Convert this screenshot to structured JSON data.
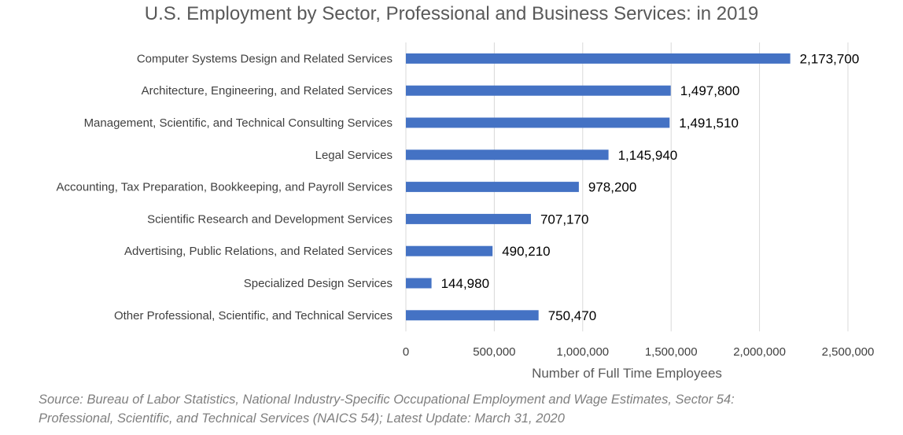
{
  "chart_data": {
    "type": "bar",
    "orientation": "horizontal",
    "title": "U.S. Employment by Sector, Professional and Business Services: in 2019",
    "categories": [
      "Computer Systems Design and Related Services",
      "Architecture, Engineering, and Related Services",
      "Management, Scientific, and Technical Consulting Services",
      "Legal Services",
      "Accounting, Tax Preparation, Bookkeeping, and Payroll Services",
      "Scientific Research and Development Services",
      "Advertising, Public Relations, and Related Services",
      "Specialized Design Services",
      "Other Professional, Scientific, and Technical Services"
    ],
    "values": [
      2173700,
      1497800,
      1491510,
      1145940,
      978200,
      707170,
      490210,
      144980,
      750470
    ],
    "data_labels": [
      "2,173,700",
      "1,497,800",
      "1,491,510",
      "1,145,940",
      "978,200",
      "707,170",
      "490,210",
      "144,980",
      "750,470"
    ],
    "xlabel": "Number of Full Time Employees",
    "ylabel": "",
    "xlim": [
      0,
      2500000
    ],
    "xticks": [
      0,
      500000,
      1000000,
      1500000,
      2000000,
      2500000
    ],
    "xtick_labels": [
      "0",
      "500,000",
      "1,000,000",
      "1,500,000",
      "2,000,000",
      "2,500,000"
    ],
    "grid": "vertical",
    "legend": "none",
    "bar_color": "#4472C4",
    "grid_color": "#D9D9D9"
  },
  "source_note": "Source: Bureau of Labor Statistics, National Industry-Specific Occupational Employment and Wage Estimates, Sector 54: Professional, Scientific, and Technical Services (NAICS 54); Latest Update: March 31, 2020"
}
